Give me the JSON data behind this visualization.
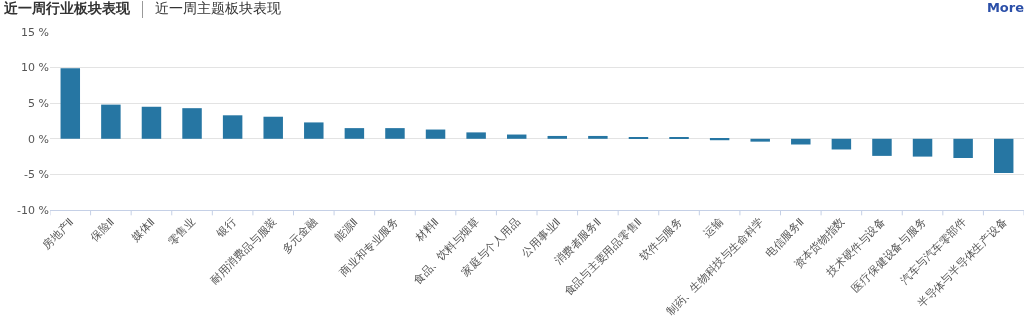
{
  "chart_data": {
    "type": "bar",
    "title": "近一周行业板块表现",
    "annotations": [
      "近一周主题板块表现",
      "More"
    ],
    "categories": [
      "房地产Ⅱ",
      "保险Ⅱ",
      "媒体Ⅱ",
      "零售业",
      "银行",
      "耐用消费品与服装",
      "多元金融",
      "能源Ⅱ",
      "商业和专业服务",
      "材料Ⅱ",
      "食品、饮料与烟草",
      "家庭与个人用品",
      "公用事业Ⅱ",
      "消费者服务Ⅱ",
      "食品与主要用品零售Ⅱ",
      "软件与服务",
      "运输",
      "制药、生物科技与生命科学",
      "电信服务Ⅱ",
      "资本货物指数",
      "技术硬件与设备",
      "医疗保健设备与服务",
      "汽车与汽车零部件",
      "半导体与半导体生产设备"
    ],
    "values": [
      9.9,
      4.8,
      4.5,
      4.3,
      3.3,
      3.1,
      2.3,
      1.5,
      1.5,
      1.3,
      0.9,
      0.6,
      0.4,
      0.4,
      0.2,
      0.2,
      -0.2,
      -0.4,
      -0.8,
      -1.5,
      -2.4,
      -2.5,
      -2.7,
      -4.8
    ],
    "color": "#2676a3",
    "ylim": [
      -10,
      15
    ],
    "yticks": [
      {
        "value": -10,
        "label": "-10 %"
      },
      {
        "value": -5,
        "label": "-5 %"
      },
      {
        "value": 0,
        "label": "0 %"
      },
      {
        "value": 5,
        "label": "5 %"
      },
      {
        "value": 10,
        "label": "10 %"
      },
      {
        "value": 15,
        "label": "15 %"
      }
    ],
    "grid": "y",
    "legend": false
  }
}
